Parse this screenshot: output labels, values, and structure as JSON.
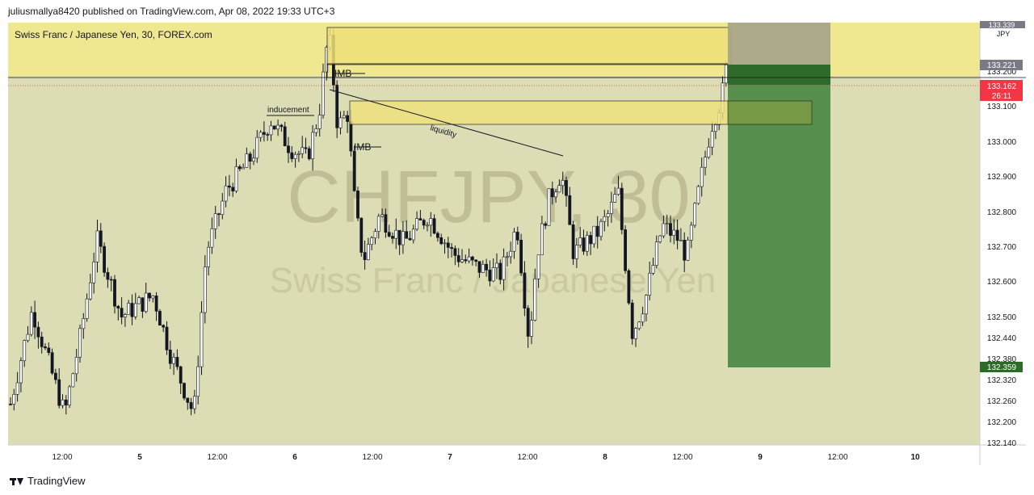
{
  "header": {
    "published_by": "juliusmallya8420 published on TradingView.com, Apr 08, 2022 19:33 UTC+3"
  },
  "footer": {
    "brand": "TradingView"
  },
  "chart_data": {
    "type": "candlestick",
    "title": "Swiss Franc / Japanese Yen, 30, FOREX.com",
    "watermark_symbol": "CHFJPY, 30",
    "watermark_name": "Swiss Franc / Japanese Yen",
    "currency": "JPY",
    "ylim": [
      132.14,
      133.34
    ],
    "y_ticks": [
      "133.339",
      "133.200",
      "133.100",
      "133.000",
      "132.900",
      "132.800",
      "132.700",
      "132.600",
      "132.500",
      "132.440",
      "132.380",
      "132.320",
      "132.260",
      "132.200",
      "132.140"
    ],
    "x_ticks": [
      "12:00",
      "5",
      "12:00",
      "6",
      "12:00",
      "7",
      "12:00",
      "8",
      "12:00",
      "9",
      "12:00",
      "10"
    ],
    "price_labels": {
      "last_close": "133.221",
      "current_price": "133.162",
      "countdown": "26:11",
      "stop_target": "132.359"
    },
    "annotations": [
      "inducement",
      "IMB",
      "IMB",
      "liquidity"
    ],
    "colors": {
      "up": "#ffffff",
      "down": "#131722",
      "premium_zone": "#f3e98b",
      "position_box": "#4f8a4a",
      "current_price": "#f23645",
      "chart_bg": "#dcdcb5"
    },
    "position": {
      "entry": 133.22,
      "stop": 133.339,
      "target": 132.359
    }
  }
}
